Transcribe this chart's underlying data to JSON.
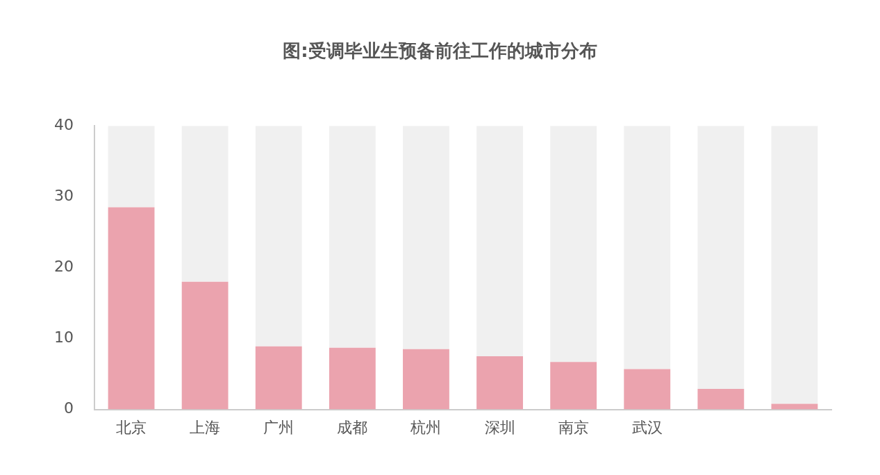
{
  "chart_data": {
    "type": "bar",
    "title": "图:受调毕业生预备前往工作的城市分布",
    "categories": [
      "北京",
      "上海",
      "广州",
      "成都",
      "杭州",
      "深圳",
      "南京",
      "武汉",
      null,
      null
    ],
    "series": [
      {
        "color": "#eba3ae",
        "values": [
          28.5,
          18,
          8.9,
          8.7,
          8.5,
          7.5,
          6.7,
          5.7,
          2.9,
          0.8
        ]
      },
      {
        "color": "#f0f0f0",
        "values": [
          11.5,
          22,
          31.1,
          31.3,
          31.5,
          32.5,
          33.3,
          34.3,
          37.1,
          39.2
        ]
      }
    ],
    "stacked": true,
    "ylim": [
      0,
      40
    ],
    "yticks": [
      0,
      10,
      20,
      30,
      40
    ],
    "grid": false,
    "legend": false
  }
}
